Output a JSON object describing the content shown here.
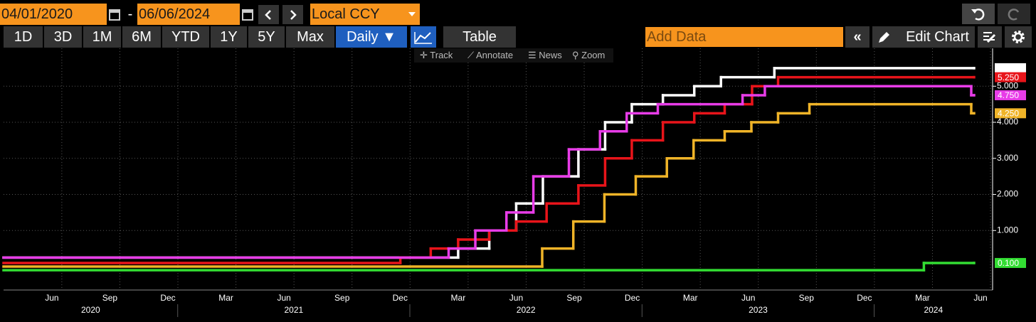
{
  "toolbar": {
    "start_date": "04/01/2020",
    "separator": "-",
    "end_date": "06/06/2024",
    "currency": "Local CCY",
    "periods": [
      "1D",
      "3D",
      "1M",
      "6M",
      "YTD",
      "1Y",
      "5Y",
      "Max"
    ],
    "frequency": "Daily ▼",
    "table": "Table",
    "add_data": "Add Data",
    "edit_chart": "Edit Chart",
    "tools": [
      "Track",
      "Annotate",
      "News",
      "Zoom"
    ]
  },
  "chart_data": {
    "type": "step",
    "xlim": [
      2020.25,
      2024.51
    ],
    "ylim": [
      -0.65,
      6.05
    ],
    "xticks": [
      {
        "value": 2020.458,
        "label": "Jun"
      },
      {
        "value": 2020.708,
        "label": "Sep"
      },
      {
        "value": 2020.958,
        "label": "Dec"
      },
      {
        "value": 2021.208,
        "label": "Mar"
      },
      {
        "value": 2021.458,
        "label": "Jun"
      },
      {
        "value": 2021.708,
        "label": "Sep"
      },
      {
        "value": 2021.958,
        "label": "Dec"
      },
      {
        "value": 2022.208,
        "label": "Mar"
      },
      {
        "value": 2022.458,
        "label": "Jun"
      },
      {
        "value": 2022.708,
        "label": "Sep"
      },
      {
        "value": 2022.958,
        "label": "Dec"
      },
      {
        "value": 2023.208,
        "label": "Mar"
      },
      {
        "value": 2023.458,
        "label": "Jun"
      },
      {
        "value": 2023.708,
        "label": "Sep"
      },
      {
        "value": 2023.958,
        "label": "Dec"
      },
      {
        "value": 2024.208,
        "label": "Mar"
      },
      {
        "value": 2024.458,
        "label": "Jun"
      }
    ],
    "years": [
      2020,
      2021,
      2022,
      2023,
      2024
    ],
    "yticks": [
      {
        "value": 1,
        "label": "1.000"
      },
      {
        "value": 2,
        "label": "2.000"
      },
      {
        "value": 3,
        "label": "3.000"
      },
      {
        "value": 4,
        "label": "4.000"
      },
      {
        "value": 5,
        "label": "5.000"
      }
    ],
    "grid": true,
    "series": [
      {
        "color": "#ffffff",
        "tag_text_color": "#000000",
        "last_label": "5.500",
        "x": [
          2020.25,
          2022.208,
          2022.342,
          2022.458,
          2022.573,
          2022.726,
          2022.841,
          2022.956,
          2023.09,
          2023.225,
          2023.34,
          2023.57,
          2024.43
        ],
        "values": [
          0.25,
          0.5,
          1.0,
          1.75,
          2.5,
          3.25,
          4.0,
          4.5,
          4.75,
          5.0,
          5.25,
          5.5,
          5.5
        ]
      },
      {
        "color": "#e8141a",
        "tag_text_color": "#ffd0d0",
        "last_label": "5.250",
        "x": [
          2020.25,
          2021.959,
          2022.09,
          2022.208,
          2022.342,
          2022.458,
          2022.589,
          2022.726,
          2022.841,
          2022.956,
          2023.09,
          2023.225,
          2023.356,
          2023.474,
          2023.586,
          2024.43
        ],
        "values": [
          0.1,
          0.25,
          0.5,
          0.75,
          1.0,
          1.25,
          1.75,
          2.25,
          3.0,
          3.5,
          4.0,
          4.25,
          4.5,
          5.0,
          5.25,
          5.25
        ]
      },
      {
        "color": "#e83ce8",
        "tag_text_color": "#ffffff",
        "last_label": "4.750",
        "x": [
          2020.25,
          2022.167,
          2022.282,
          2022.416,
          2022.532,
          2022.685,
          2022.819,
          2022.934,
          2023.068,
          2023.433,
          2023.529,
          2024.418,
          2024.43
        ],
        "values": [
          0.25,
          0.5,
          1.0,
          1.5,
          2.5,
          3.25,
          3.75,
          4.25,
          4.5,
          4.75,
          5.0,
          4.75,
          4.75
        ]
      },
      {
        "color": "#f0b428",
        "tag_text_color": "#000000",
        "last_label": "4.250",
        "x": [
          2020.25,
          2022.57,
          2022.704,
          2022.838,
          2022.973,
          2023.107,
          2023.222,
          2023.356,
          2023.471,
          2023.586,
          2023.721,
          2024.418,
          2024.43
        ],
        "values": [
          0.0,
          0.5,
          1.25,
          2.0,
          2.5,
          3.0,
          3.5,
          3.75,
          4.0,
          4.25,
          4.5,
          4.25,
          4.25
        ]
      },
      {
        "color": "#33dd33",
        "tag_text_color": "#000000",
        "last_label": "0.100",
        "x": [
          2020.25,
          2024.214,
          2024.43
        ],
        "values": [
          -0.1,
          0.1,
          0.1
        ]
      }
    ]
  }
}
